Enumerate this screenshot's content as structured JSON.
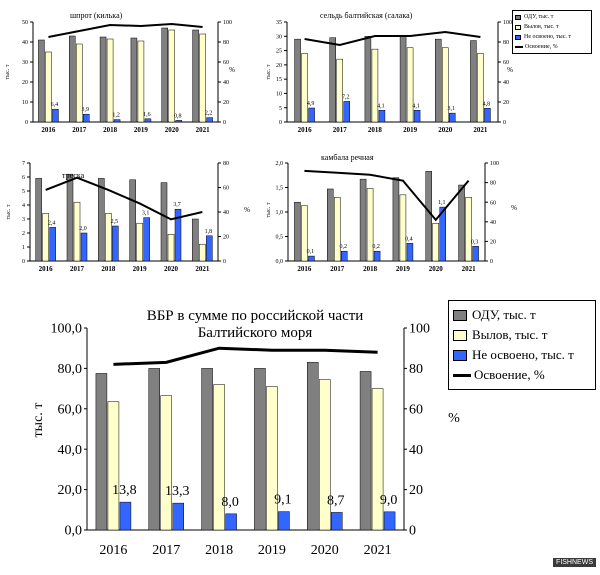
{
  "watermark": "FISHNEWS",
  "legend_small": {
    "odu": "ОДУ, тыс. т",
    "catch": "Вылов, тыс. т",
    "undev": "Не освоено, тыс. т",
    "rate": "Освоение, %"
  },
  "legend_main": {
    "odu": "ОДУ, тыс. т",
    "catch": "Вылов, тыс. т",
    "undev": "Не освоено, тыс. т",
    "rate": "Освоение, %"
  },
  "colors": {
    "odu": "#808080",
    "catch": "#ffffcc",
    "undev": "#3366ff",
    "rate": "#000000"
  },
  "chart_data": [
    {
      "id": "shprot",
      "type": "bar",
      "title": "шпрот (килька)",
      "ylabel": "тыс. т",
      "y2label": "%",
      "categories": [
        "2016",
        "2017",
        "2018",
        "2019",
        "2020",
        "2021"
      ],
      "ylim": [
        0,
        50
      ],
      "yticks": [
        0,
        10,
        20,
        30,
        40,
        50
      ],
      "y2lim": [
        0,
        100
      ],
      "y2ticks": [
        0,
        20,
        40,
        60,
        80,
        100
      ],
      "series": [
        {
          "key": "odu",
          "name": "ОДУ, тыс. т",
          "values": [
            41,
            43,
            42.5,
            42,
            47,
            46
          ]
        },
        {
          "key": "catch",
          "name": "Вылов, тыс. т",
          "values": [
            35,
            39,
            41.5,
            40.5,
            46,
            44
          ]
        },
        {
          "key": "undev",
          "name": "Не освоено, тыс. т",
          "values": [
            6.4,
            3.9,
            1.2,
            1.6,
            0.8,
            2.2
          ]
        },
        {
          "key": "rate",
          "name": "Освоение, %",
          "values": [
            85,
            91,
            97,
            96,
            98,
            95
          ]
        }
      ],
      "data_labels": [
        "6,4",
        "3,9",
        "1,2",
        "1,6",
        "0,8",
        "2,2"
      ]
    },
    {
      "id": "seld",
      "type": "bar",
      "title": "сельдь балтийская (салака)",
      "ylabel": "тыс. т",
      "y2label": "%",
      "categories": [
        "2016",
        "2017",
        "2018",
        "2019",
        "2020",
        "2021"
      ],
      "ylim": [
        0,
        35
      ],
      "yticks": [
        0,
        5,
        10,
        15,
        20,
        25,
        30,
        35
      ],
      "y2lim": [
        0,
        100
      ],
      "y2ticks": [
        0,
        20,
        40,
        60,
        80,
        100
      ],
      "series": [
        {
          "key": "odu",
          "name": "ОДУ, тыс. т",
          "values": [
            29,
            29.5,
            30,
            30,
            29,
            28.5
          ]
        },
        {
          "key": "catch",
          "name": "Вылов, тыс. т",
          "values": [
            24,
            22,
            25.5,
            26,
            26,
            24
          ]
        },
        {
          "key": "undev",
          "name": "Не освоено, тыс. т",
          "values": [
            4.9,
            7.2,
            4.1,
            4.1,
            3.1,
            4.8
          ]
        },
        {
          "key": "rate",
          "name": "Освоение, %",
          "values": [
            83,
            77,
            86,
            86,
            90,
            85
          ]
        }
      ],
      "data_labels": [
        "4,9",
        "7,2",
        "4,1",
        "4,1",
        "3,1",
        "4,8"
      ]
    },
    {
      "id": "treska",
      "type": "bar",
      "title": "треска",
      "ylabel": "тыс. т",
      "y2label": "%",
      "categories": [
        "2016",
        "2017",
        "2018",
        "2019",
        "2020",
        "2021"
      ],
      "ylim": [
        0,
        7
      ],
      "yticks": [
        0,
        1,
        2,
        3,
        4,
        5,
        6,
        7
      ],
      "y2lim": [
        0,
        80
      ],
      "y2ticks": [
        0,
        20,
        40,
        60,
        80
      ],
      "series": [
        {
          "key": "odu",
          "name": "ОДУ, тыс. т",
          "values": [
            5.9,
            6.2,
            5.9,
            5.8,
            5.6,
            3.0
          ]
        },
        {
          "key": "catch",
          "name": "Вылов, тыс. т",
          "values": [
            3.4,
            4.2,
            3.4,
            2.7,
            1.9,
            1.2
          ]
        },
        {
          "key": "undev",
          "name": "Не освоено, тыс. т",
          "values": [
            2.4,
            2.0,
            2.5,
            3.1,
            3.7,
            1.8
          ]
        },
        {
          "key": "rate",
          "name": "Освоение, %",
          "values": [
            58,
            68,
            58,
            47,
            34,
            40
          ]
        }
      ],
      "data_labels": [
        "2,4",
        "2,0",
        "2,5",
        "3,1",
        "3,7",
        "1,8"
      ]
    },
    {
      "id": "kambala",
      "type": "bar",
      "title": "камбала речная",
      "ylabel": "тыс. т",
      "y2label": "%",
      "categories": [
        "2016",
        "2017",
        "2018",
        "2019",
        "2020",
        "2021"
      ],
      "ylim": [
        0,
        2.0
      ],
      "yticks": [
        0,
        0.5,
        1.0,
        1.5,
        2.0
      ],
      "tick_labels": [
        "0,0",
        "0,5",
        "1,0",
        "1,5",
        "2,0"
      ],
      "y2lim": [
        0,
        100
      ],
      "y2ticks": [
        0,
        20,
        40,
        60,
        80,
        100
      ],
      "series": [
        {
          "key": "odu",
          "name": "ОДУ, тыс. т",
          "values": [
            1.2,
            1.47,
            1.67,
            1.7,
            1.83,
            1.55
          ]
        },
        {
          "key": "catch",
          "name": "Вылов, тыс. т",
          "values": [
            1.13,
            1.3,
            1.48,
            1.35,
            0.77,
            1.3
          ]
        },
        {
          "key": "undev",
          "name": "Не освоено, тыс. т",
          "values": [
            0.1,
            0.2,
            0.2,
            0.36,
            1.1,
            0.3
          ]
        },
        {
          "key": "rate",
          "name": "Освоение, %",
          "values": [
            92,
            90,
            88,
            82,
            42,
            82
          ]
        }
      ],
      "data_labels": [
        "0,1",
        "0,2",
        "0,2",
        "0,4",
        "1,1",
        "0,3"
      ]
    },
    {
      "id": "vbr",
      "type": "bar",
      "title": "ВБР в сумме по российской части Балтийского моря",
      "title_lines": [
        "ВБР в сумме по российской части",
        "Балтийского моря"
      ],
      "ylabel": "тыс. т",
      "y2label": "%",
      "categories": [
        "2016",
        "2017",
        "2018",
        "2019",
        "2020",
        "2021"
      ],
      "ylim": [
        0,
        100
      ],
      "yticks": [
        0,
        20,
        40,
        60,
        80,
        100
      ],
      "tick_labels": [
        "0,0",
        "20,0",
        "40,0",
        "60,0",
        "80,0",
        "100,0"
      ],
      "y2lim": [
        0,
        100
      ],
      "y2ticks": [
        0,
        20,
        40,
        60,
        80,
        100
      ],
      "series": [
        {
          "key": "odu",
          "name": "ОДУ, тыс. т",
          "values": [
            77.5,
            80,
            80,
            80,
            83,
            78.5
          ]
        },
        {
          "key": "catch",
          "name": "Вылов, тыс. т",
          "values": [
            63.5,
            66.5,
            72,
            71,
            74.5,
            70
          ]
        },
        {
          "key": "undev",
          "name": "Не освоено, тыс. т",
          "values": [
            13.8,
            13.3,
            8.0,
            9.1,
            8.7,
            9.0
          ]
        },
        {
          "key": "rate",
          "name": "Освоение, %",
          "values": [
            82,
            83,
            90,
            89,
            89,
            88
          ]
        }
      ],
      "data_labels": [
        "13,8",
        "13,3",
        "8,0",
        "9,1",
        "8,7",
        "9,0"
      ]
    }
  ]
}
